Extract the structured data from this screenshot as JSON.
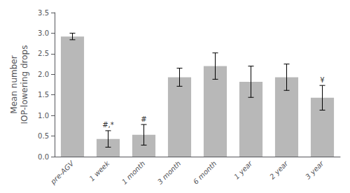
{
  "chart_data": {
    "type": "bar",
    "categories": [
      "pre-AGV",
      "1 week",
      "1 month",
      "3 month",
      "6 month",
      "1 year",
      "2 year",
      "3 year"
    ],
    "values": [
      2.92,
      0.43,
      0.53,
      1.93,
      2.2,
      1.82,
      1.93,
      1.43
    ],
    "errors": [
      0.08,
      0.2,
      0.25,
      0.22,
      0.32,
      0.38,
      0.32,
      0.3
    ],
    "color": "#b8b8b8",
    "ylabel": "Mean number\nIOP-lowering drops",
    "ylim": [
      0,
      3.5
    ],
    "yticks": [
      {
        "value": 0,
        "label": "0.0"
      },
      0.5,
      {
        "value": 1.0,
        "label": "1.0"
      },
      1.5,
      {
        "value": 2.0,
        "label": "2.0"
      },
      2.5,
      {
        "value": 3.0,
        "label": "3.0"
      },
      3.5
    ],
    "grid": false,
    "annotations": [
      {
        "category": "1 week",
        "text": "#,*"
      },
      {
        "category": "1 month",
        "text": "#"
      },
      {
        "category": "3 year",
        "text": "¥"
      }
    ]
  }
}
